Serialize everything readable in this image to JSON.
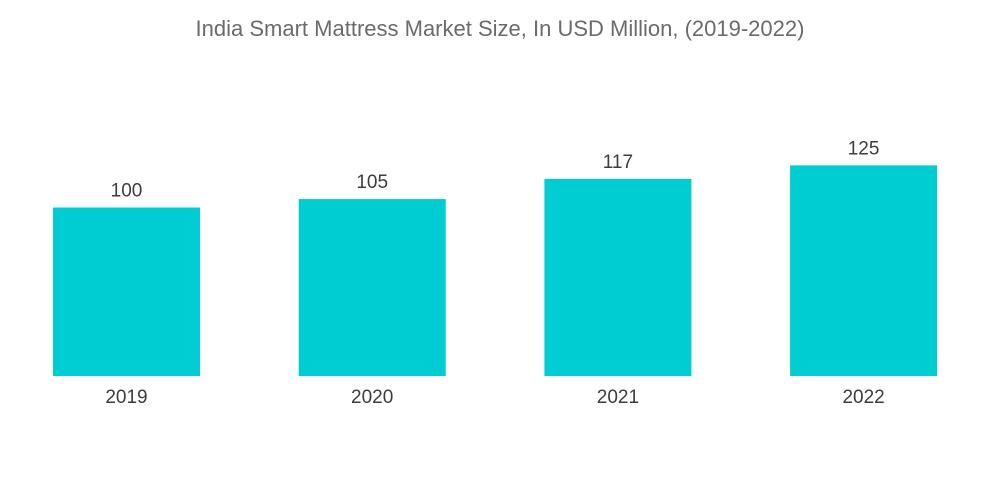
{
  "chart_data": {
    "type": "bar",
    "title": "India Smart Mattress Market Size, In USD Million, (2019-2022)",
    "categories": [
      "2019",
      "2020",
      "2021",
      "2022"
    ],
    "values": [
      100,
      105,
      117,
      125
    ],
    "data_labels": [
      "100",
      "105",
      "117",
      "125"
    ],
    "xlabel": "",
    "ylabel": "",
    "grid": false,
    "legend": "none",
    "bar_color": "#00cdd1"
  }
}
